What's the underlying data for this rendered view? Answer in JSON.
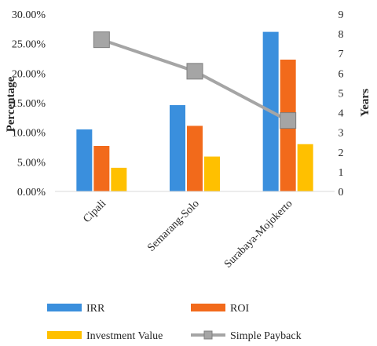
{
  "chart_data": {
    "type": "bar",
    "categories": [
      "Cipali",
      "Semarang-Solo",
      "Surabaya-Mojokerto"
    ],
    "series": [
      {
        "name": "IRR",
        "axis": "left",
        "kind": "bar",
        "color": "#3A8FDD",
        "values": [
          10.5,
          14.6,
          27.0
        ]
      },
      {
        "name": "ROI",
        "axis": "left",
        "kind": "bar",
        "color": "#F26A1B",
        "values": [
          7.7,
          11.1,
          22.3
        ]
      },
      {
        "name": "Investment Value",
        "axis": "left",
        "kind": "bar",
        "color": "#FFC000",
        "values": [
          4.0,
          5.9,
          8.0
        ]
      },
      {
        "name": "Simple Payback",
        "axis": "right",
        "kind": "line",
        "color": "#A5A5A5",
        "values": [
          7.7,
          6.1,
          3.6
        ]
      }
    ],
    "ylabel": "Percentage",
    "y2label": "Years",
    "ylim": [
      0,
      30
    ],
    "y2lim": [
      0,
      9
    ],
    "yticks": [
      "0.00%",
      "5.00%",
      "10.00%",
      "15.00%",
      "20.00%",
      "25.00%",
      "30.00%"
    ],
    "y2ticks": [
      "0",
      "1",
      "2",
      "3",
      "4",
      "5",
      "6",
      "7",
      "8",
      "9"
    ],
    "grid": false,
    "legend_position": "bottom"
  }
}
